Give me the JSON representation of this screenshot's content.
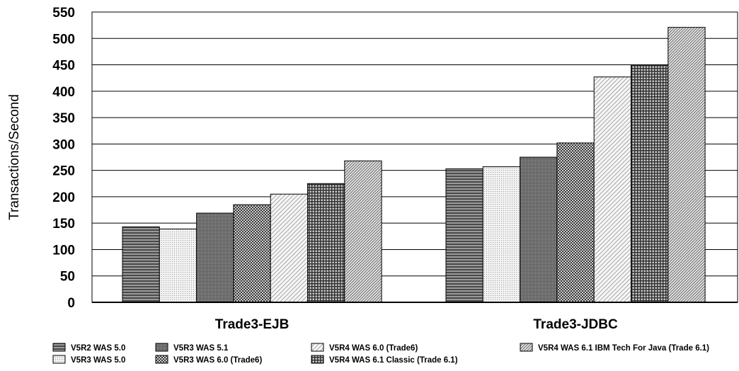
{
  "chart_data": {
    "type": "bar",
    "ylabel": "Transactions/Second",
    "ylim": [
      0,
      550
    ],
    "yticks": [
      "0",
      "50",
      "100",
      "150",
      "200",
      "250",
      "300",
      "350",
      "400",
      "450",
      "500",
      "550"
    ],
    "categories": [
      "Trade3-EJB",
      "Trade3-JDBC"
    ],
    "series": [
      {
        "name": "V5R2 WAS 5.0",
        "values": [
          143,
          253
        ],
        "color": "#6e6e6e",
        "pattern": "hlines-dark"
      },
      {
        "name": "V5R3 WAS 5.0",
        "values": [
          139,
          257
        ],
        "color": "#e6e6e6",
        "pattern": "dots-light"
      },
      {
        "name": "V5R3 WAS 5.1",
        "values": [
          169,
          275
        ],
        "color": "#7a7a7a",
        "pattern": "dense-dark"
      },
      {
        "name": "V5R3 WAS 6.0 (Trade6)",
        "values": [
          185,
          302
        ],
        "color": "#8a8a8a",
        "pattern": "checker-dark"
      },
      {
        "name": "V5R4 WAS 6.0 (Trade6)",
        "values": [
          205,
          427
        ],
        "color": "#e8e8e8",
        "pattern": "diag-light"
      },
      {
        "name": "V5R4 WAS 6.1 Classic (Trade 6.1)",
        "values": [
          225,
          450
        ],
        "color": "#8a8a8a",
        "pattern": "grid-dark"
      },
      {
        "name": "V5R4 WAS 6.1 IBM Tech For Java (Trade 6.1)",
        "values": [
          268,
          521
        ],
        "color": "#d0d0d0",
        "pattern": "diag-medium"
      }
    ],
    "grid": true,
    "legend_position": "bottom"
  }
}
